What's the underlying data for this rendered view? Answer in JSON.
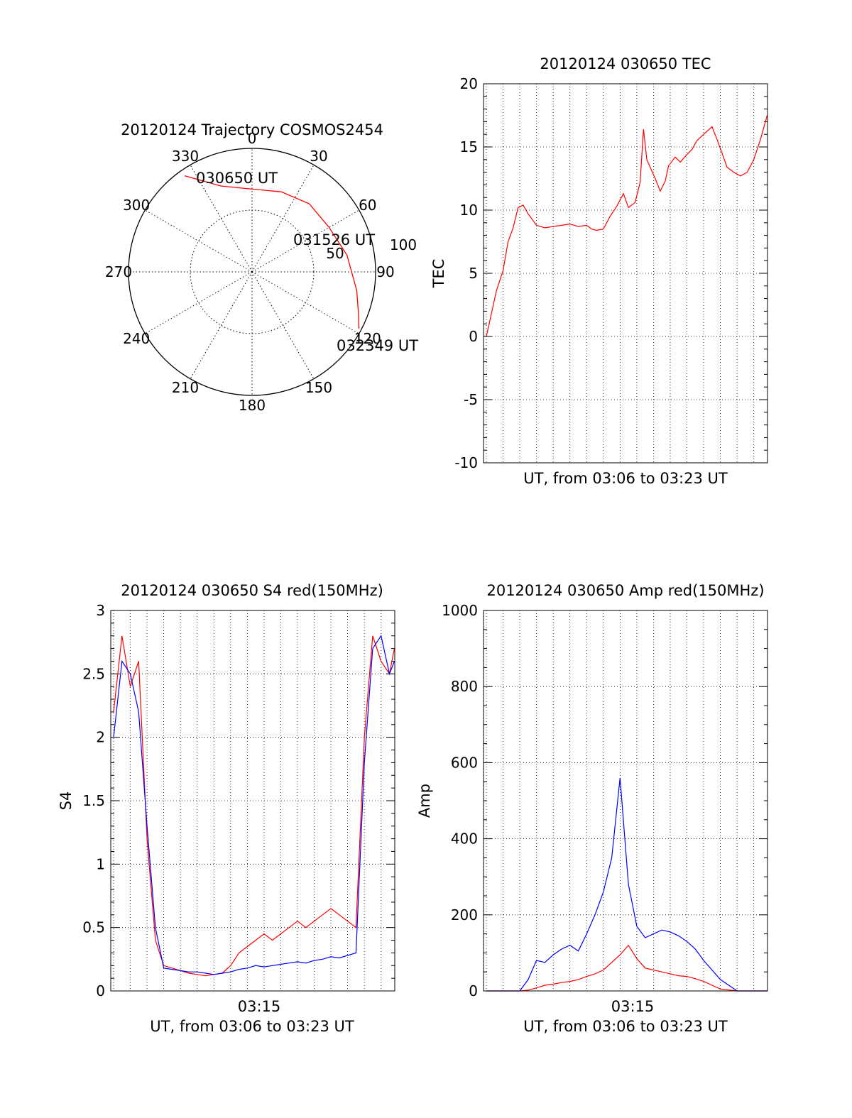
{
  "chart_data": [
    {
      "type": "polar-trajectory",
      "title": "20120124 Trajectory COSMOS2454",
      "azimuth_labels": [
        "0",
        "30",
        "60",
        "90",
        "120",
        "150",
        "180",
        "210",
        "240",
        "270",
        "300",
        "330"
      ],
      "radial_labels": [
        "50",
        "100"
      ],
      "radial_max": 100,
      "trajectory": {
        "color": "#ff0000",
        "points": [
          {
            "az": 325,
            "r": 95
          },
          {
            "az": 340,
            "r": 74
          },
          {
            "az": 0,
            "r": 67
          },
          {
            "az": 20,
            "r": 69
          },
          {
            "az": 40,
            "r": 72
          },
          {
            "az": 60,
            "r": 72
          },
          {
            "az": 80,
            "r": 78
          },
          {
            "az": 100,
            "r": 86
          },
          {
            "az": 112,
            "r": 93
          },
          {
            "az": 118,
            "r": 98
          }
        ]
      },
      "annotations": [
        "030650 UT",
        "031526 UT",
        "032349 UT"
      ]
    },
    {
      "type": "line",
      "title": "20120124 030650 TEC",
      "ylabel": "TEC",
      "xlabel": "UT, from 03:06 to 03:23 UT",
      "ylim": [
        -10,
        20
      ],
      "yticks": [
        "-10",
        "-5",
        "0",
        "5",
        "10",
        "15",
        "20"
      ],
      "xlim_min": [
        6.83,
        23.82
      ],
      "series": [
        {
          "color": "#ff0000",
          "x": [
            7.0,
            7.3,
            7.6,
            8.0,
            8.3,
            8.6,
            8.9,
            9.2,
            9.5,
            10.0,
            10.5,
            11.0,
            11.5,
            12.0,
            12.5,
            13.0,
            13.3,
            13.6,
            14.0,
            14.4,
            14.8,
            15.2,
            15.5,
            15.9,
            16.2,
            16.4,
            16.6,
            16.8,
            17.1,
            17.4,
            17.7,
            17.9,
            18.3,
            18.6,
            19.0,
            19.3,
            19.6,
            20.0,
            20.5,
            20.8,
            21.1,
            21.4,
            21.8,
            22.2,
            22.6,
            23.0,
            23.4,
            23.8
          ],
          "y": [
            0.0,
            1.8,
            3.6,
            5.2,
            7.5,
            8.6,
            10.2,
            10.4,
            9.7,
            8.8,
            8.6,
            8.7,
            8.8,
            8.9,
            8.7,
            8.8,
            8.5,
            8.4,
            8.5,
            9.5,
            10.3,
            11.3,
            10.2,
            10.6,
            12.2,
            16.4,
            14.0,
            13.4,
            12.5,
            11.5,
            12.3,
            13.5,
            14.2,
            13.8,
            14.4,
            14.8,
            15.5,
            16.0,
            16.6,
            15.6,
            14.5,
            13.4,
            13.0,
            12.7,
            13.0,
            14.0,
            15.6,
            17.5
          ]
        }
      ]
    },
    {
      "type": "line",
      "title": "20120124 030650 S4 red(150MHz)",
      "ylabel": "S4",
      "xlabel": "UT, from 03:06 to 03:23 UT",
      "ylim": [
        0,
        3
      ],
      "yticks": [
        "0",
        "0.5",
        "1",
        "1.5",
        "2",
        "2.5",
        "3"
      ],
      "xtick_labels": [
        "03:15"
      ],
      "xlim_min": [
        6.83,
        23.82
      ],
      "series": [
        {
          "color": "#ff0000",
          "x": [
            7.0,
            7.5,
            8.0,
            8.5,
            9.0,
            9.5,
            10.0,
            10.5,
            11.0,
            11.5,
            12.0,
            12.5,
            13.0,
            13.5,
            14.0,
            14.5,
            15.0,
            15.5,
            16.0,
            16.5,
            17.0,
            17.5,
            18.0,
            18.5,
            19.0,
            19.5,
            20.0,
            20.5,
            21.0,
            21.5,
            22.0,
            22.5,
            23.0,
            23.5,
            23.8
          ],
          "y": [
            2.2,
            2.8,
            2.4,
            2.6,
            1.2,
            0.4,
            0.2,
            0.18,
            0.16,
            0.14,
            0.13,
            0.12,
            0.13,
            0.14,
            0.2,
            0.3,
            0.35,
            0.4,
            0.45,
            0.4,
            0.45,
            0.5,
            0.55,
            0.5,
            0.55,
            0.6,
            0.65,
            0.6,
            0.55,
            0.5,
            2.0,
            2.8,
            2.6,
            2.5,
            2.7
          ]
        },
        {
          "color": "#0000ff",
          "x": [
            7.0,
            7.5,
            8.0,
            8.5,
            9.0,
            9.5,
            10.0,
            10.5,
            11.0,
            11.5,
            12.0,
            12.5,
            13.0,
            13.5,
            14.0,
            14.5,
            15.0,
            15.5,
            16.0,
            16.5,
            17.0,
            17.5,
            18.0,
            18.5,
            19.0,
            19.5,
            20.0,
            20.5,
            21.0,
            21.5,
            22.0,
            22.5,
            23.0,
            23.5,
            23.8
          ],
          "y": [
            2.0,
            2.6,
            2.5,
            2.2,
            1.3,
            0.5,
            0.18,
            0.17,
            0.16,
            0.15,
            0.15,
            0.14,
            0.13,
            0.14,
            0.15,
            0.17,
            0.18,
            0.2,
            0.19,
            0.2,
            0.21,
            0.22,
            0.23,
            0.22,
            0.24,
            0.25,
            0.27,
            0.26,
            0.28,
            0.3,
            1.8,
            2.7,
            2.8,
            2.5,
            2.6
          ]
        }
      ]
    },
    {
      "type": "line",
      "title": "20120124 030650 Amp red(150MHz)",
      "ylabel": "Amp",
      "xlabel": "UT, from 03:06 to 03:23 UT",
      "ylim": [
        0,
        1000
      ],
      "yticks": [
        "0",
        "200",
        "400",
        "600",
        "800",
        "1000"
      ],
      "xtick_labels": [
        "03:15"
      ],
      "xlim_min": [
        6.83,
        23.82
      ],
      "series": [
        {
          "color": "#ff0000",
          "x": [
            7.0,
            8.0,
            9.0,
            9.5,
            10.0,
            10.5,
            11.0,
            11.5,
            12.0,
            12.5,
            13.0,
            13.5,
            14.0,
            14.5,
            15.0,
            15.5,
            16.0,
            16.5,
            17.0,
            17.5,
            18.0,
            18.5,
            19.0,
            19.5,
            20.0,
            20.5,
            21.0,
            22.0,
            23.0,
            23.8
          ],
          "y": [
            0,
            0,
            0,
            2,
            8,
            15,
            18,
            22,
            25,
            30,
            38,
            45,
            55,
            75,
            95,
            120,
            85,
            60,
            55,
            50,
            45,
            40,
            38,
            32,
            25,
            15,
            5,
            0,
            0,
            0
          ]
        },
        {
          "color": "#0000ff",
          "x": [
            7.0,
            8.0,
            9.0,
            9.5,
            10.0,
            10.5,
            11.0,
            11.5,
            12.0,
            12.5,
            13.0,
            13.5,
            14.0,
            14.5,
            15.0,
            15.5,
            16.0,
            16.5,
            17.0,
            17.5,
            18.0,
            18.5,
            19.0,
            19.5,
            20.0,
            20.5,
            21.0,
            22.0,
            23.0,
            23.8
          ],
          "y": [
            0,
            0,
            0,
            30,
            80,
            75,
            95,
            110,
            120,
            105,
            150,
            200,
            260,
            350,
            560,
            280,
            170,
            140,
            150,
            160,
            155,
            145,
            130,
            110,
            80,
            55,
            30,
            0,
            0,
            0
          ]
        }
      ]
    }
  ]
}
